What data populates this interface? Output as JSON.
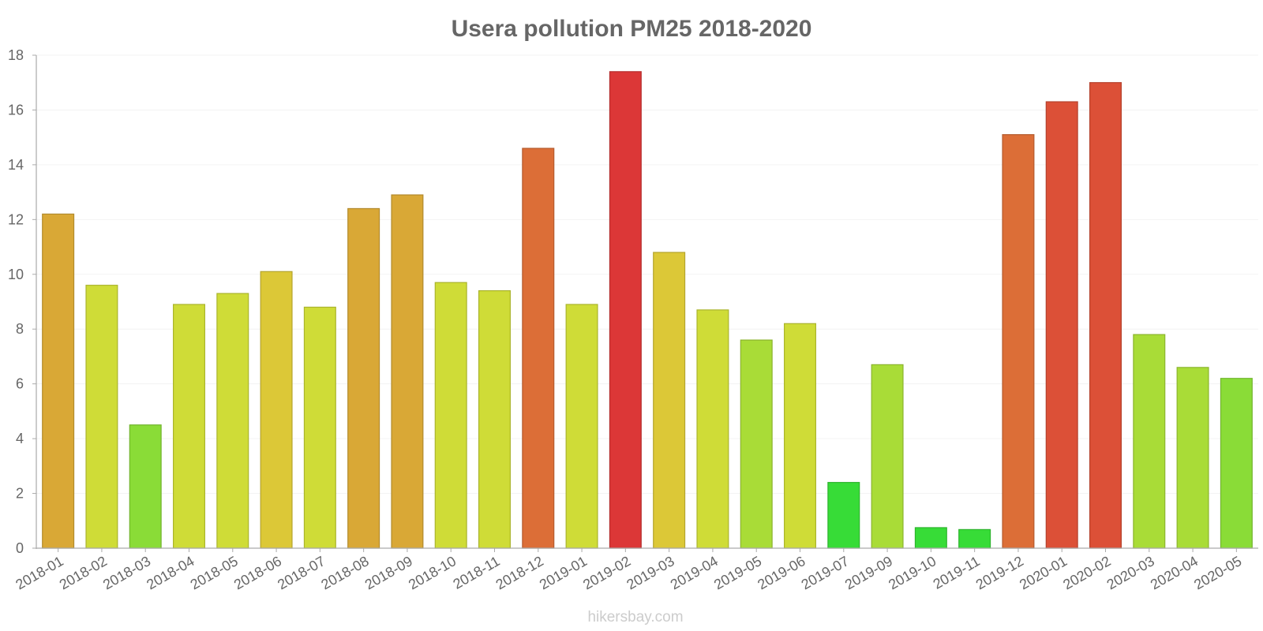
{
  "chart_data": {
    "type": "bar",
    "title": "Usera pollution PM25 2018-2020",
    "xlabel": "",
    "ylabel": "",
    "ylim": [
      0,
      18
    ],
    "yticks": [
      0,
      2,
      4,
      6,
      8,
      10,
      12,
      14,
      16,
      18
    ],
    "grid": true,
    "categories": [
      "2018-01",
      "2018-02",
      "2018-03",
      "2018-04",
      "2018-05",
      "2018-06",
      "2018-07",
      "2018-08",
      "2018-09",
      "2018-10",
      "2018-11",
      "2018-12",
      "2019-01",
      "2019-02",
      "2019-03",
      "2019-04",
      "2019-05",
      "2019-06",
      "2019-07",
      "2019-09",
      "2019-10",
      "2019-11",
      "2019-12",
      "2020-01",
      "2020-02",
      "2020-03",
      "2020-04",
      "2020-05"
    ],
    "values": [
      12.2,
      9.6,
      4.5,
      8.9,
      9.3,
      10.1,
      8.8,
      12.4,
      12.9,
      9.7,
      9.4,
      14.6,
      8.9,
      17.4,
      10.8,
      8.7,
      7.6,
      8.2,
      2.4,
      6.7,
      0.75,
      0.68,
      15.1,
      16.3,
      17.0,
      7.8,
      6.6,
      6.2
    ],
    "colors": [
      "#d9a836",
      "#cfdc37",
      "#8adc37",
      "#cfdc37",
      "#cfdc37",
      "#dcc837",
      "#cfdc37",
      "#d9a836",
      "#d9a836",
      "#cfdc37",
      "#cfdc37",
      "#dc6e37",
      "#cfdc37",
      "#dc3737",
      "#dcc837",
      "#cfdc37",
      "#a9dc37",
      "#cfdc37",
      "#37dc37",
      "#a9dc37",
      "#37dc37",
      "#37dc37",
      "#dc6e37",
      "#dc5037",
      "#dc5037",
      "#a9dc37",
      "#a9dc37",
      "#8adc37"
    ]
  },
  "watermark": "hikersbay.com"
}
